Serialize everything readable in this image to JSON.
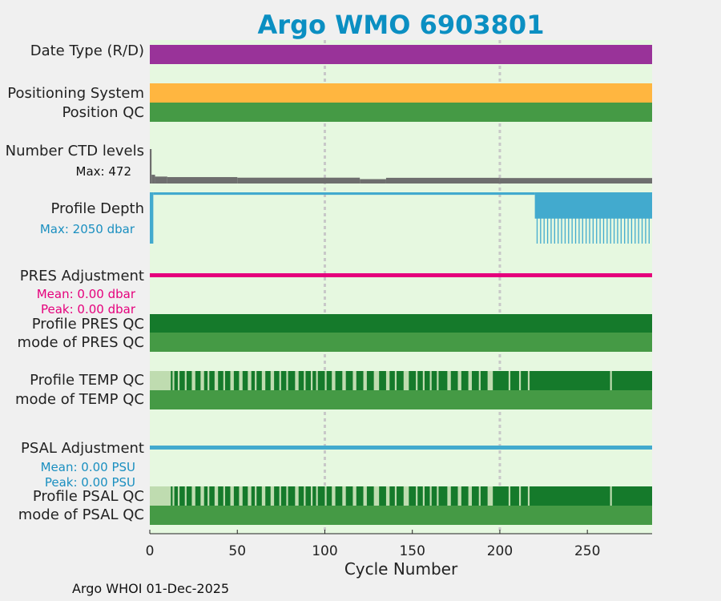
{
  "title": "Argo WMO 6903801",
  "footer": "Argo WHOI 01-Dec-2025",
  "colors": {
    "background": "#e6f8e0",
    "date_type": "#993399",
    "positioning": "#ffb640",
    "qc_mid": "#459a45",
    "qc_dark": "#157a2b",
    "qc_light": "#bfdcb0",
    "ctd": "#6e6e6e",
    "depth": "#42aace",
    "pres_adj": "#e5007c",
    "psal_adj": "#42aace",
    "grid": "#c8c8c8"
  },
  "rows": {
    "date_type": "Date Type (R/D)",
    "positioning_system": "Positioning System",
    "position_qc": "Position QC",
    "ctd_levels": "Number CTD levels",
    "ctd_max": "Max: 472",
    "profile_depth": "Profile Depth",
    "depth_max": "Max: 2050 dbar",
    "pres_adjustment": "PRES Adjustment",
    "pres_mean": "Mean: 0.00 dbar",
    "pres_peak": "Peak: 0.00 dbar",
    "profile_pres_qc": "Profile PRES QC",
    "mode_pres_qc": "mode of PRES QC",
    "profile_temp_qc": "Profile TEMP QC",
    "mode_temp_qc": "mode of TEMP QC",
    "psal_adjustment": "PSAL Adjustment",
    "psal_mean": "Mean: 0.00 PSU",
    "psal_peak": "Peak: 0.00 PSU",
    "profile_psal_qc": "Profile PSAL QC",
    "mode_psal_qc": "mode of PSAL QC"
  },
  "chart_data": {
    "type": "bar",
    "xlabel": "Cycle Number",
    "xlim": [
      0,
      287
    ],
    "xticks": [
      0,
      50,
      100,
      150,
      200,
      250
    ],
    "grid_x": [
      100,
      200
    ],
    "ctd_max": 472,
    "depth_max": 2050,
    "ctd_levels_segments": [
      {
        "from": 0,
        "to": 1,
        "value": 472
      },
      {
        "from": 1,
        "to": 3,
        "value": 120
      },
      {
        "from": 3,
        "to": 10,
        "value": 95
      },
      {
        "from": 10,
        "to": 50,
        "value": 88
      },
      {
        "from": 50,
        "to": 120,
        "value": 80
      },
      {
        "from": 120,
        "to": 135,
        "value": 60
      },
      {
        "from": 135,
        "to": 200,
        "value": 78
      },
      {
        "from": 200,
        "to": 287,
        "value": 75
      }
    ],
    "depth_segments": [
      {
        "from": 0,
        "to": 2,
        "value": 2050
      },
      {
        "from": 2,
        "to": 220,
        "value": 100
      },
      {
        "from": 220,
        "to": 287,
        "value": 1050
      }
    ],
    "depth_spike_start": 221,
    "depth_spike_step": 2,
    "depth_spike_value": 2050,
    "temp_qc_mixed_until": 205,
    "temp_qc_light_spans": [
      [
        0,
        12
      ],
      [
        13,
        14
      ],
      [
        16,
        17
      ],
      [
        20,
        21
      ],
      [
        24,
        26
      ],
      [
        29,
        31
      ],
      [
        33,
        34
      ],
      [
        37,
        39
      ],
      [
        42,
        43
      ],
      [
        46,
        48
      ],
      [
        51,
        53
      ],
      [
        56,
        58
      ],
      [
        60,
        61
      ],
      [
        64,
        66
      ],
      [
        69,
        71
      ],
      [
        74,
        75
      ],
      [
        78,
        79
      ],
      [
        83,
        85
      ],
      [
        88,
        89
      ],
      [
        92,
        93
      ],
      [
        95,
        96
      ],
      [
        100,
        101
      ],
      [
        104,
        106
      ],
      [
        110,
        112
      ],
      [
        116,
        118
      ],
      [
        122,
        124
      ],
      [
        128,
        131
      ],
      [
        135,
        137
      ],
      [
        140,
        141
      ],
      [
        145,
        148
      ],
      [
        152,
        153
      ],
      [
        156,
        157
      ],
      [
        160,
        161
      ],
      [
        164,
        165
      ],
      [
        170,
        172
      ],
      [
        176,
        178
      ],
      [
        182,
        184
      ],
      [
        188,
        189
      ],
      [
        193,
        196
      ],
      [
        205,
        206
      ],
      [
        211,
        212
      ],
      [
        216,
        217
      ],
      [
        263,
        264
      ]
    ],
    "psal_qc_light_spans": [
      [
        0,
        12
      ],
      [
        13,
        14
      ],
      [
        16,
        17
      ],
      [
        20,
        21
      ],
      [
        24,
        26
      ],
      [
        29,
        31
      ],
      [
        33,
        34
      ],
      [
        37,
        39
      ],
      [
        42,
        43
      ],
      [
        46,
        48
      ],
      [
        51,
        53
      ],
      [
        56,
        58
      ],
      [
        60,
        61
      ],
      [
        64,
        66
      ],
      [
        69,
        71
      ],
      [
        74,
        75
      ],
      [
        78,
        79
      ],
      [
        83,
        85
      ],
      [
        88,
        89
      ],
      [
        92,
        93
      ],
      [
        95,
        96
      ],
      [
        100,
        101
      ],
      [
        104,
        106
      ],
      [
        110,
        112
      ],
      [
        116,
        118
      ],
      [
        122,
        124
      ],
      [
        128,
        131
      ],
      [
        135,
        137
      ],
      [
        140,
        141
      ],
      [
        145,
        148
      ],
      [
        152,
        153
      ],
      [
        156,
        157
      ],
      [
        160,
        161
      ],
      [
        164,
        165
      ],
      [
        170,
        172
      ],
      [
        176,
        178
      ],
      [
        182,
        184
      ],
      [
        188,
        189
      ],
      [
        193,
        196
      ],
      [
        205,
        206
      ],
      [
        211,
        212
      ],
      [
        216,
        217
      ],
      [
        263,
        264
      ]
    ],
    "pres_adj_mean": 0.0,
    "psal_adj_mean": 0.0
  }
}
